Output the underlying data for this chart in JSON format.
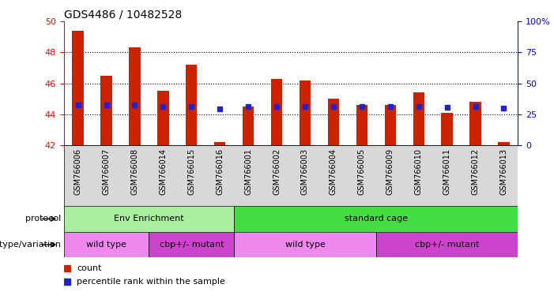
{
  "title": "GDS4486 / 10482528",
  "samples": [
    "GSM766006",
    "GSM766007",
    "GSM766008",
    "GSM766014",
    "GSM766015",
    "GSM766016",
    "GSM766001",
    "GSM766002",
    "GSM766003",
    "GSM766004",
    "GSM766005",
    "GSM766009",
    "GSM766010",
    "GSM766011",
    "GSM766012",
    "GSM766013"
  ],
  "bar_heights": [
    49.4,
    46.5,
    48.3,
    45.5,
    47.2,
    42.2,
    44.5,
    46.3,
    46.2,
    45.0,
    44.6,
    44.6,
    45.4,
    44.1,
    44.8,
    42.2
  ],
  "blue_values": [
    44.6,
    44.6,
    44.6,
    44.5,
    44.5,
    44.35,
    44.5,
    44.5,
    44.5,
    44.5,
    44.5,
    44.5,
    44.5,
    44.45,
    44.5,
    44.4
  ],
  "ymin": 42,
  "ymax": 50,
  "yticks": [
    42,
    44,
    46,
    48,
    50
  ],
  "y2ticks": [
    0,
    25,
    50,
    75,
    100
  ],
  "bar_color": "#cc2200",
  "blue_color": "#2222cc",
  "protocol_labels": [
    "Env Enrichment",
    "standard cage"
  ],
  "protocol_colors": [
    "#aaeea0",
    "#44dd44"
  ],
  "genotype_labels": [
    "wild type",
    "cbp+/- mutant",
    "wild type",
    "cbp+/- mutant"
  ],
  "genotype_colors": [
    "#ee88ee",
    "#cc44cc",
    "#ee88ee",
    "#cc44cc"
  ],
  "protocol_row_label": "protocol",
  "genotype_row_label": "genotype/variation",
  "xtick_bg": "#d8d8d8"
}
